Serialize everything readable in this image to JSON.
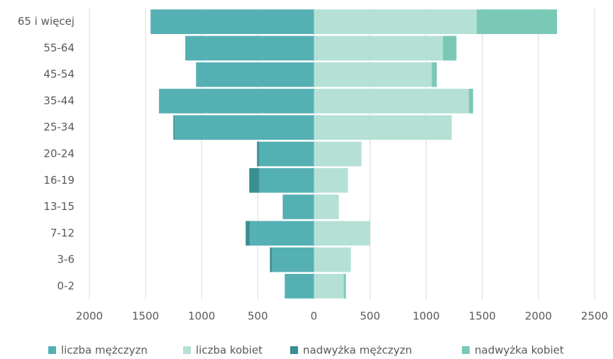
{
  "chart_data": {
    "type": "pyramid",
    "categories": [
      "65 i więcej",
      "55-64",
      "45-54",
      "35-44",
      "25-34",
      "20-24",
      "16-19",
      "13-15",
      "7-12",
      "3-6",
      "0-2"
    ],
    "series": [
      {
        "name": "liczba mężczyzn",
        "color": "#55b0b4",
        "values": [
          -1455,
          -1146,
          -1050,
          -1380,
          -1240,
          -487,
          -487,
          -272,
          -570,
          -373,
          -260
        ]
      },
      {
        "name": "liczba kobiet",
        "color": "#b5e0d6",
        "values": [
          1450,
          1150,
          1050,
          1380,
          1228,
          424,
          304,
          222,
          500,
          329,
          266
        ]
      },
      {
        "name": "nadwyżka mężczyzn",
        "color": "#3a8f93",
        "values": [
          0,
          0,
          0,
          0,
          -12,
          -20,
          -89,
          -5,
          -38,
          -19,
          0
        ]
      },
      {
        "name": "nadwyżka kobiet",
        "color": "#79c9b6",
        "values": [
          715,
          120,
          45,
          38,
          0,
          0,
          0,
          0,
          0,
          0,
          19
        ]
      }
    ],
    "xlim": [
      -2000,
      2500
    ],
    "xticks": [
      {
        "value": -2000,
        "label": "2000"
      },
      {
        "value": -1500,
        "label": "1500"
      },
      {
        "value": -1000,
        "label": "1000"
      },
      {
        "value": -500,
        "label": "500"
      },
      0,
      500,
      1000,
      1500,
      2000,
      2500
    ],
    "grid": true,
    "legend": "bottom"
  }
}
